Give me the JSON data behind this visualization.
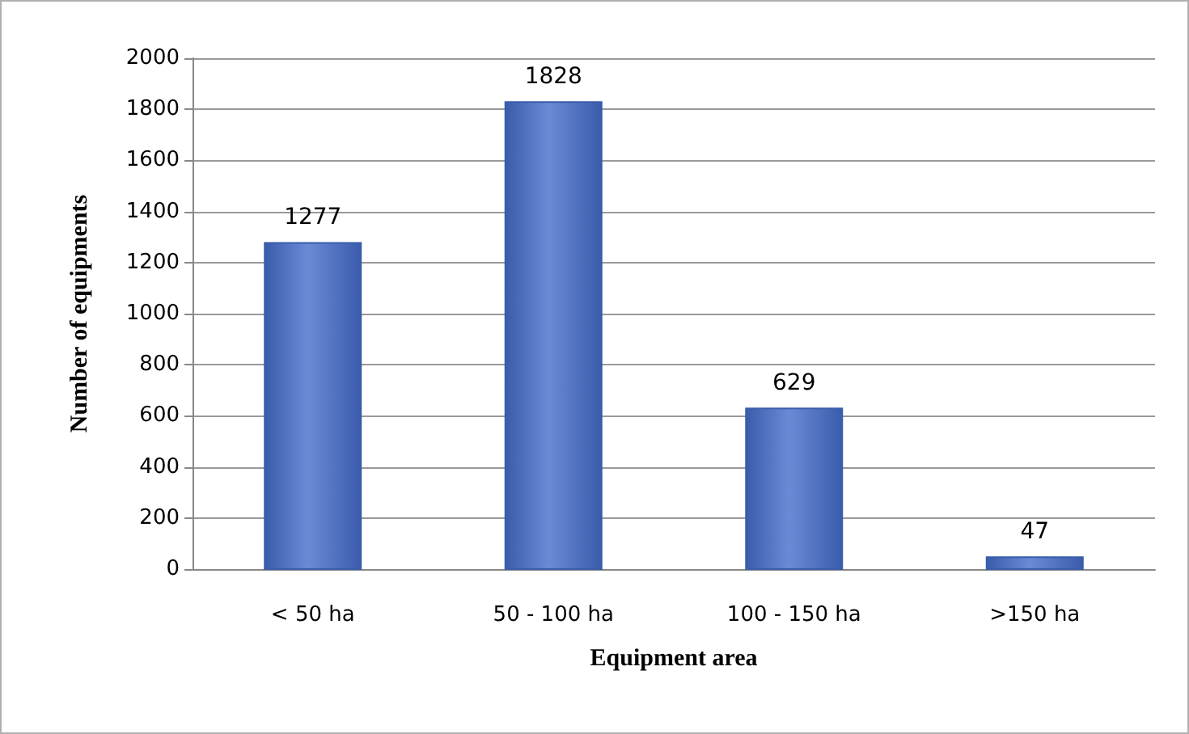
{
  "chart_data": {
    "type": "bar",
    "categories": [
      "< 50 ha",
      "50 - 100 ha",
      "100 - 150 ha",
      ">150 ha"
    ],
    "values": [
      1277,
      1828,
      629,
      47
    ],
    "color": "#3a5cab",
    "xlabel": "Equipment area",
    "ylabel": "Number of equipments",
    "ylim": [
      0,
      2000
    ],
    "yticks": [
      0,
      200,
      400,
      600,
      800,
      1000,
      1200,
      1400,
      1600,
      1800,
      2000
    ],
    "grid": "y",
    "data_labels": true
  }
}
